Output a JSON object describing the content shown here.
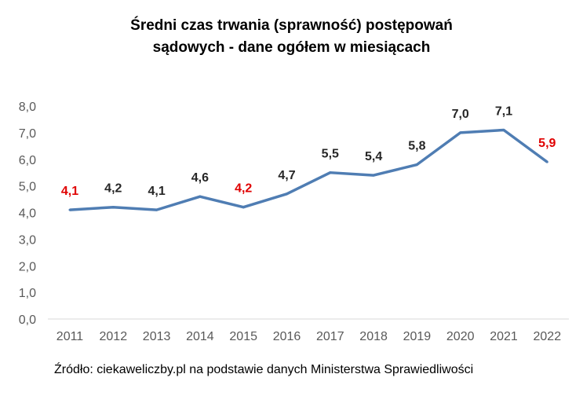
{
  "chart_data": {
    "type": "line",
    "title_line1": "Średni czas trwania (sprawność) postępowań",
    "title_line2": "sądowych - dane ogółem w miesiącach",
    "categories": [
      "2011",
      "2012",
      "2013",
      "2014",
      "2015",
      "2016",
      "2017",
      "2018",
      "2019",
      "2020",
      "2021",
      "2022"
    ],
    "series": [
      {
        "values": [
          4.1,
          4.2,
          4.1,
          4.6,
          4.2,
          4.7,
          5.5,
          5.4,
          5.8,
          7.0,
          7.1,
          5.9
        ]
      }
    ],
    "data_labels": [
      "4,1",
      "4,2",
      "4,1",
      "4,6",
      "4,2",
      "4,7",
      "5,5",
      "5,4",
      "5,8",
      "7,0",
      "7,1",
      "5,9"
    ],
    "highlighted_labels": [
      "2011",
      "2015",
      "2022"
    ],
    "yticks": [
      "0,0",
      "1,0",
      "2,0",
      "3,0",
      "4,0",
      "5,0",
      "6,0",
      "7,0",
      "8,0"
    ],
    "ylim": [
      0,
      8
    ],
    "grid": false,
    "colors": {
      "line": "#4f7db3",
      "label": "#262626",
      "highlight": "#e00000",
      "axis_text": "#595959"
    },
    "source": "Źródło: ciekaweliczby.pl na podstawie danych Ministerstwa Sprawiedliwości"
  }
}
